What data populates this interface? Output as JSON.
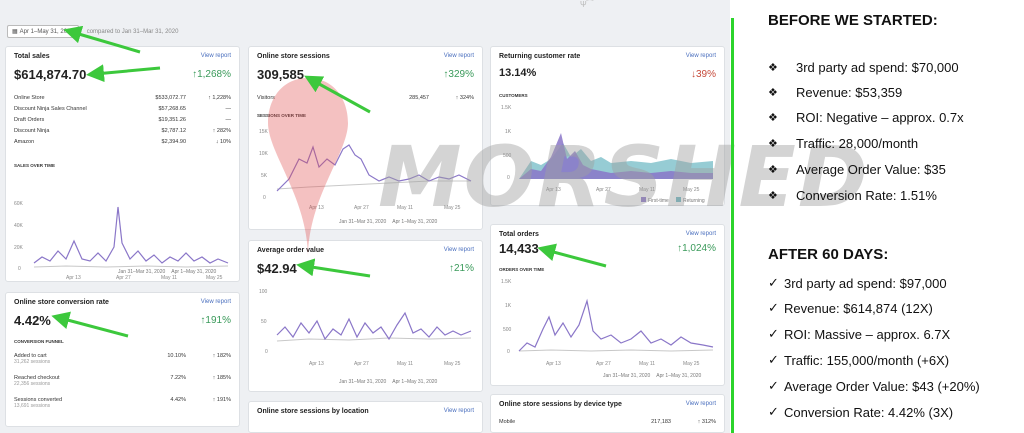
{
  "topmark": "Ψ⁀",
  "datebar": {
    "range": "Apr 1–May 31, 2020",
    "compared": "compared to Jan 31–Mar 31, 2020"
  },
  "view_report": "View report",
  "total_sales": {
    "title": "Total sales",
    "value": "$614,874.70",
    "change": "↑1,268%",
    "rows": [
      {
        "label": "Online Store",
        "value": "$533,072.77",
        "change": "↑ 1,228%"
      },
      {
        "label": "Discount Ninja Sales Channel",
        "value": "$57,268.65",
        "change": "—"
      },
      {
        "label": "Draft Orders",
        "value": "$19,351.26",
        "change": "—"
      },
      {
        "label": "Discount Ninja",
        "value": "$2,787.12",
        "change": "↑ 282%"
      },
      {
        "label": "Amazon",
        "value": "$2,394.90",
        "change": "↓ 10%"
      }
    ],
    "section": "SALES OVER TIME",
    "yticks": [
      "60K",
      "40K",
      "20K",
      "0"
    ],
    "xticks": [
      "Apr 13",
      "Apr 27",
      "May 11",
      "May 25"
    ],
    "legend": [
      "Jan 31–Mar 31, 2020",
      "Apr 1–May 31, 2020"
    ]
  },
  "sessions": {
    "title": "Online store sessions",
    "value": "309,585",
    "change": "↑329%",
    "row": {
      "label": "Visitors",
      "value": "285,457",
      "change": "↑ 324%"
    },
    "section": "SESSIONS OVER TIME",
    "yticks": [
      "15K",
      "10K",
      "5K",
      "0"
    ],
    "xticks": [
      "Apr 13",
      "Apr 27",
      "May 11",
      "May 25"
    ],
    "legend": [
      "Jan 31–Mar 31, 2020",
      "Apr 1–May 31, 2020"
    ]
  },
  "returning": {
    "title": "Returning customer rate",
    "value": "13.14%",
    "change": "↓39%",
    "section": "CUSTOMERS",
    "yticks": [
      "1.5K",
      "1K",
      "500",
      "0"
    ],
    "xticks": [
      "Apr 13",
      "Apr 27",
      "May 11",
      "May 25"
    ],
    "legend": [
      "First-time",
      "Returning"
    ]
  },
  "conversion": {
    "title": "Online store conversion rate",
    "value": "4.42%",
    "change": "↑191%",
    "section": "CONVERSION FUNNEL",
    "rows": [
      {
        "label": "Added to cart",
        "sub": "31,262 sessions",
        "value": "10.10%",
        "change": "↑ 182%"
      },
      {
        "label": "Reached checkout",
        "sub": "22,356 sessions",
        "value": "7.22%",
        "change": "↑ 185%"
      },
      {
        "label": "Sessions converted",
        "sub": "13,691 sessions",
        "value": "4.42%",
        "change": "↑ 191%"
      }
    ]
  },
  "aov": {
    "title": "Average order value",
    "value": "$42.94",
    "change": "↑21%",
    "yticks": [
      "100",
      "50",
      "0"
    ],
    "xticks": [
      "Apr 13",
      "Apr 27",
      "May 11",
      "May 25"
    ],
    "legend": [
      "Jan 31–Mar 31, 2020",
      "Apr 1–May 31, 2020"
    ]
  },
  "orders": {
    "title": "Total orders",
    "value": "14,433",
    "change": "↑1,024%",
    "section": "ORDERS OVER TIME",
    "yticks": [
      "1.5K",
      "1K",
      "500",
      "0"
    ],
    "xticks": [
      "Apr 13",
      "Apr 27",
      "May 11",
      "May 25"
    ],
    "legend": [
      "Jan 31–Mar 31, 2020",
      "Apr 1–May 31, 2020"
    ]
  },
  "by_location": {
    "title": "Online store sessions by location"
  },
  "by_device": {
    "title": "Online store sessions by device type",
    "row": {
      "label": "Mobile",
      "value": "217,183",
      "change": "↑ 312%"
    }
  },
  "watermark": "MORSHED",
  "before": {
    "heading": "BEFORE WE STARTED:",
    "items": [
      "3rd party ad spend: $70,000",
      "Revenue: $53,359",
      "ROI: Negative – approx. 0.7x",
      "Traffic: 28,000/month",
      "Average Order Value: $35",
      "Conversion Rate: 1.51%"
    ]
  },
  "after": {
    "heading": "AFTER 60 DAYS:",
    "items": [
      "3rd party ad spend: $97,000",
      "Revenue: $614,874 (12X)",
      "ROI: Massive – approx. 6.7X",
      "Traffic: 155,000/month (+6X)",
      "Average Order Value: $43 (+20%)",
      "Conversion Rate: 4.42% (3X)"
    ]
  },
  "colors": {
    "purple": "#8a76c8",
    "gray": "#c8c8c8",
    "green_arrow": "#3cc83c",
    "teal": "#6ab7c2"
  }
}
